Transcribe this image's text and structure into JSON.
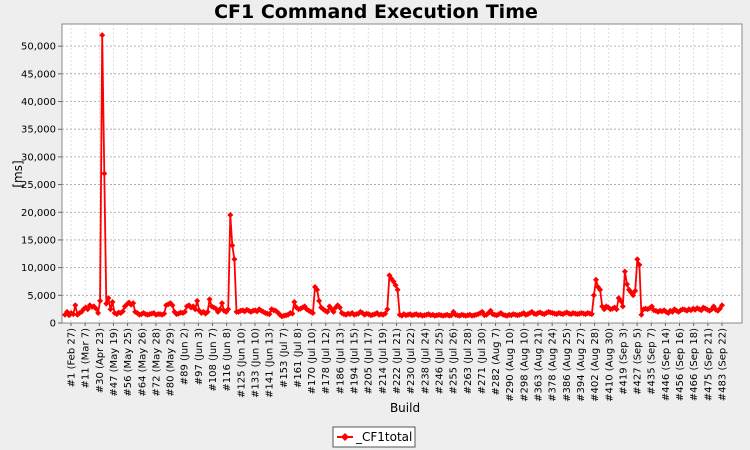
{
  "chart_data": {
    "type": "line",
    "title": "CF1 Command Execution Time",
    "xlabel": "Build",
    "ylabel": "[ms]",
    "ylim": [
      0,
      54000
    ],
    "yticks": [
      0,
      5000,
      10000,
      15000,
      20000,
      25000,
      30000,
      35000,
      40000,
      45000,
      50000
    ],
    "ytick_labels": [
      "0",
      "5,000",
      "10,000",
      "15,000",
      "20,000",
      "25,000",
      "30,000",
      "35,000",
      "40,000",
      "45,000",
      "50,000"
    ],
    "grid": true,
    "legend_position": "bottom-center",
    "color": "#ff0000",
    "x_tick_labels": [
      "#1 (Feb 27)",
      "#11 (Mar 7)",
      "#30 (Apr 23)",
      "#47 (May 19)",
      "#56 (May 25)",
      "#64 (May 26)",
      "#72 (May 28)",
      "#80 (May 29)",
      "#89 (Jun 2)",
      "#97 (Jun 3)",
      "#108 (Jun 7)",
      "#116 (Jun 8)",
      "#125 (Jun 10)",
      "#133 (Jun 10)",
      "#141 (Jun 13)",
      "#153 (Jul 7)",
      "#161 (Jul 8)",
      "#170 (Jul 10)",
      "#178 (Jul 12)",
      "#186 (Jul 13)",
      "#194 (Jul 15)",
      "#205 (Jul 17)",
      "#214 (Jul 19)",
      "#222 (Jul 21)",
      "#230 (Jul 22)",
      "#238 (Jul 24)",
      "#246 (Jul 25)",
      "#255 (Jul 26)",
      "#263 (Jul 28)",
      "#271 (Jul 30)",
      "#282 (Aug 7)",
      "#290 (Aug 10)",
      "#298 (Aug 10)",
      "#363 (Aug 21)",
      "#378 (Aug 24)",
      "#386 (Aug 25)",
      "#394 (Aug 27)",
      "#402 (Aug 28)",
      "#410 (Aug 30)",
      "#419 (Sep 3)",
      "#427 (Sep 5)",
      "#435 (Sep 7)",
      "#446 (Sep 14)",
      "#456 (Sep 16)",
      "#466 (Sep 18)",
      "#475 (Sep 21)",
      "#483 (Sep 22)"
    ],
    "series": [
      {
        "name": "_CF1total",
        "values": [
          1500,
          2000,
          1400,
          1800,
          1600,
          3200,
          1500,
          1800,
          2000,
          2500,
          2800,
          2500,
          3200,
          2900,
          3000,
          2600,
          1800,
          4000,
          52000,
          27000,
          3500,
          4500,
          2500,
          3800,
          1800,
          1600,
          1900,
          1800,
          2100,
          3000,
          3400,
          3700,
          3300,
          3600,
          2000,
          1800,
          1500,
          1600,
          1800,
          1600,
          1500,
          1600,
          1700,
          1800,
          1500,
          1600,
          1600,
          1500,
          1700,
          3200,
          3400,
          3600,
          3200,
          2000,
          1600,
          1700,
          1900,
          1800,
          2000,
          3000,
          3200,
          2800,
          3000,
          2500,
          4000,
          2200,
          1800,
          2000,
          1700,
          2000,
          4300,
          3000,
          2800,
          2600,
          2000,
          2500,
          3600,
          2200,
          2000,
          2500,
          19500,
          14000,
          11500,
          2000,
          2000,
          2200,
          2300,
          2100,
          2400,
          2200,
          2000,
          2200,
          2300,
          2100,
          2500,
          2200,
          2000,
          1800,
          1700,
          1600,
          2500,
          2300,
          2200,
          1900,
          1500,
          1200,
          1300,
          1400,
          1500,
          1800,
          1700,
          3800,
          2800,
          2500,
          2600,
          2800,
          3000,
          2500,
          2200,
          2000,
          1800,
          6500,
          6000,
          4000,
          2800,
          2500,
          2200,
          2000,
          3000,
          2500,
          2000,
          2800,
          3200,
          2800,
          1800,
          1600,
          1500,
          1700,
          1600,
          1800,
          1500,
          1600,
          1700,
          2000,
          1800,
          1500,
          1700,
          1600,
          1400,
          1500,
          1600,
          1800,
          1500,
          1600,
          1500,
          1700,
          2500,
          8600,
          8000,
          7500,
          6800,
          6000,
          1500,
          1300,
          1600,
          1400,
          1500,
          1600,
          1400,
          1500,
          1600,
          1400,
          1500,
          1300,
          1400,
          1500,
          1600,
          1400,
          1500,
          1300,
          1400,
          1500,
          1400,
          1300,
          1400,
          1500,
          1300,
          1400,
          2000,
          1500,
          1400,
          1300,
          1500,
          1400,
          1300,
          1400,
          1500,
          1300,
          1400,
          1500,
          1600,
          1800,
          2000,
          1400,
          1500,
          1800,
          2200,
          1600,
          1500,
          1400,
          1600,
          1800,
          1500,
          1400,
          1300,
          1500,
          1400,
          1600,
          1500,
          1400,
          1500,
          1600,
          1800,
          1500,
          1600,
          1800,
          2000,
          1700,
          1600,
          1800,
          1900,
          1700,
          1600,
          1800,
          2000,
          1900,
          1800,
          1700,
          1600,
          1800,
          1700,
          1600,
          1800,
          1900,
          1700,
          1600,
          1800,
          1700,
          1600,
          1700,
          1800,
          1700,
          1600,
          1800,
          1700,
          1600,
          5000,
          7800,
          6500,
          6000,
          3000,
          2500,
          3000,
          2800,
          2500,
          2600,
          2800,
          2500,
          4500,
          4000,
          3000,
          9300,
          7000,
          6000,
          5500,
          5000,
          5800,
          11500,
          10500,
          1500,
          2500,
          2600,
          2500,
          2700,
          3000,
          2300,
          2200,
          2000,
          2200,
          2100,
          2300,
          2000,
          1800,
          2200,
          2000,
          2500,
          2200,
          2000,
          2300,
          2500,
          2400,
          2200,
          2500,
          2300,
          2600,
          2400,
          2700,
          2500,
          2300,
          2800,
          2600,
          2400,
          2200,
          2500,
          3000,
          2400,
          2200,
          2600,
          3200
        ]
      }
    ]
  }
}
